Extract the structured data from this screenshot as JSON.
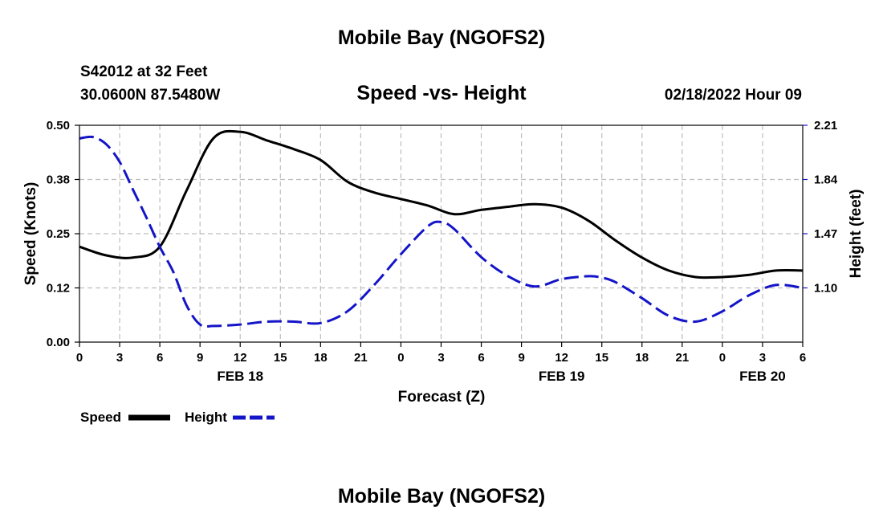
{
  "header": {
    "title": "Mobile Bay (NGOFS2)",
    "station": "S42012 at 32 Feet",
    "coords": "30.0600N  87.5480W",
    "datetime": "02/18/2022 Hour 09",
    "footer_title": "Mobile Bay (NGOFS2)"
  },
  "chart_data": {
    "type": "line",
    "title": "Speed -vs- Height",
    "xlabel": "Forecast (Z)",
    "ylabel": "Speed (Knots)",
    "y2label": "Height (feet)",
    "x_range": [
      0,
      54
    ],
    "ylim": [
      0,
      0.5
    ],
    "y2lim": [
      0.73,
      2.21
    ],
    "x_ticks": [
      0,
      3,
      6,
      9,
      12,
      15,
      18,
      21,
      24,
      27,
      30,
      33,
      36,
      39,
      42,
      45,
      48,
      51,
      54
    ],
    "x_tick_labels": [
      "0",
      "3",
      "6",
      "9",
      "12",
      "15",
      "18",
      "21",
      "0",
      "3",
      "6",
      "9",
      "12",
      "15",
      "18",
      "21",
      "0",
      "3",
      "6"
    ],
    "date_labels": [
      {
        "x": 12,
        "label": "FEB 18"
      },
      {
        "x": 36,
        "label": "FEB 19"
      },
      {
        "x": 51,
        "label": "FEB 20"
      }
    ],
    "y_ticks": [
      0,
      0.125,
      0.25,
      0.375,
      0.5
    ],
    "y_tick_labels": [
      "0.00",
      "0.12",
      "0.25",
      "0.38",
      "0.50"
    ],
    "y2_ticks": [
      1.1,
      1.47,
      1.84,
      2.21
    ],
    "y2_tick_labels": [
      "1.10",
      "1.47",
      "1.84",
      "2.21"
    ],
    "grid": true,
    "legend": "bottom-left",
    "series": [
      {
        "name": "Speed",
        "axis": "left",
        "color": "#000000",
        "dash": "solid",
        "x": [
          0,
          2,
          4,
          6,
          8,
          10,
          12,
          14,
          16,
          18,
          20,
          22,
          24,
          26,
          28,
          30,
          32,
          34,
          36,
          38,
          40,
          42,
          44,
          46,
          48,
          50,
          52,
          54
        ],
        "values": [
          0.22,
          0.2,
          0.195,
          0.22,
          0.35,
          0.47,
          0.485,
          0.465,
          0.445,
          0.42,
          0.37,
          0.345,
          0.33,
          0.315,
          0.295,
          0.305,
          0.312,
          0.318,
          0.31,
          0.28,
          0.235,
          0.195,
          0.165,
          0.15,
          0.15,
          0.155,
          0.165,
          0.165
        ]
      },
      {
        "name": "Height",
        "axis": "right",
        "color": "#1414c8",
        "dash": "dashed",
        "x": [
          0,
          1,
          2,
          3,
          4,
          5,
          6,
          7,
          8,
          9,
          10,
          12,
          14,
          16,
          18,
          20,
          22,
          24,
          26,
          27,
          28,
          30,
          32,
          34,
          36,
          38,
          39,
          40,
          42,
          44,
          46,
          48,
          50,
          52,
          54
        ],
        "values": [
          2.12,
          2.13,
          2.08,
          1.96,
          1.77,
          1.58,
          1.38,
          1.21,
          0.98,
          0.85,
          0.84,
          0.85,
          0.87,
          0.87,
          0.86,
          0.94,
          1.12,
          1.33,
          1.52,
          1.55,
          1.5,
          1.31,
          1.18,
          1.11,
          1.16,
          1.18,
          1.17,
          1.14,
          1.03,
          0.91,
          0.87,
          0.94,
          1.05,
          1.12,
          1.1
        ]
      }
    ]
  }
}
